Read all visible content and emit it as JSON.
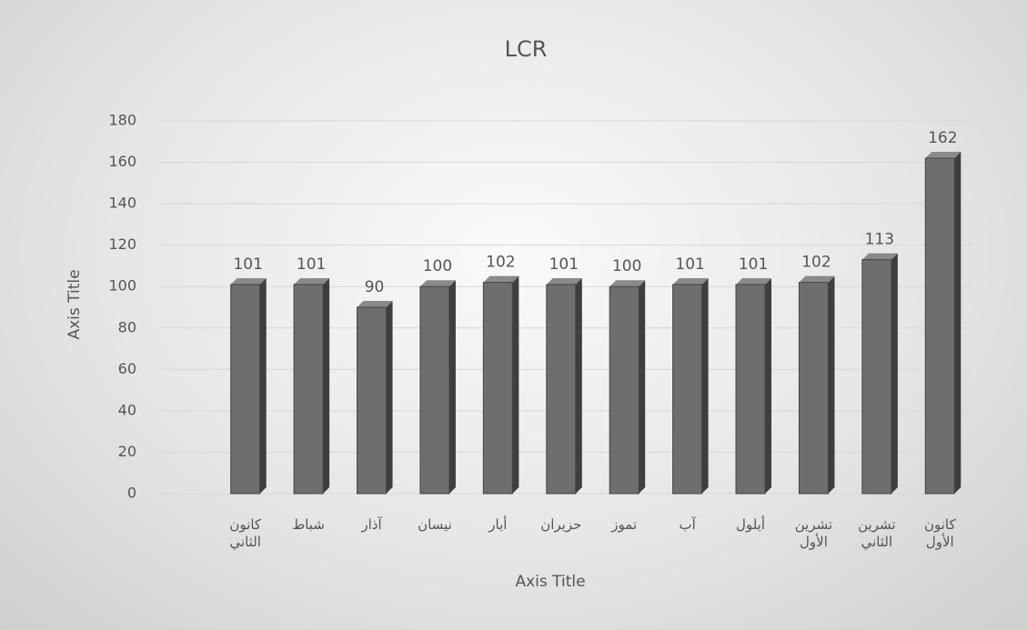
{
  "chart_data": {
    "type": "bar",
    "title": "LCR",
    "categories": [
      "كانون الثاني",
      "شباط",
      "آذار",
      "نيسان",
      "أيار",
      "حزيران",
      "تموز",
      "آب",
      "أيلول",
      "تشرين الأول",
      "تشرين الثاني",
      "كانون الأول"
    ],
    "values": [
      101,
      101,
      90,
      100,
      102,
      101,
      100,
      101,
      101,
      102,
      113,
      162
    ],
    "color": "#6e6e6e",
    "ylim": [
      0,
      180
    ],
    "yticks": [
      0,
      20,
      40,
      60,
      80,
      100,
      120,
      140,
      160,
      180
    ],
    "x_label": "Axis Title",
    "y_label": "Axis Title",
    "grid": true
  }
}
